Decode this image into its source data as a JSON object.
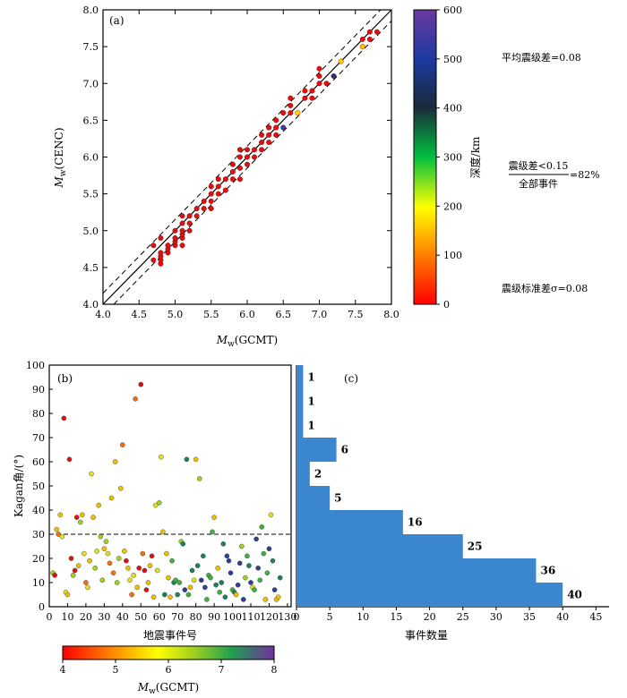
{
  "chart_data": [
    {
      "panel": "(a)",
      "type": "scatter",
      "xlabel_main": "M",
      "xlabel_sub": "w",
      "xlabel_paren": "(GCMT)",
      "ylabel_main": "M",
      "ylabel_sub": "w",
      "ylabel_paren": "(CENC)",
      "xlim": [
        4.0,
        8.0
      ],
      "ylim": [
        4.0,
        8.0
      ],
      "xticks": [
        "4.0",
        "4.5",
        "5.0",
        "5.5",
        "6.0",
        "6.5",
        "7.0",
        "7.5",
        "8.0"
      ],
      "yticks": [
        "4.0",
        "4.5",
        "5.0",
        "5.5",
        "6.0",
        "6.5",
        "7.0",
        "7.5",
        "8.0"
      ],
      "reference_lines": {
        "identity": true,
        "offset": 0.15
      },
      "points": [
        [
          4.7,
          4.6
        ],
        [
          4.8,
          4.55
        ],
        [
          4.8,
          4.6
        ],
        [
          4.8,
          4.65
        ],
        [
          4.8,
          4.7
        ],
        [
          4.8,
          4.9
        ],
        [
          4.7,
          4.8
        ],
        [
          4.9,
          4.7
        ],
        [
          4.9,
          4.75
        ],
        [
          4.9,
          4.8
        ],
        [
          5.0,
          4.8
        ],
        [
          5.0,
          4.85
        ],
        [
          5.0,
          4.9
        ],
        [
          5.0,
          5.0
        ],
        [
          5.1,
          4.8
        ],
        [
          5.1,
          4.9
        ],
        [
          5.1,
          4.95
        ],
        [
          5.1,
          5.0
        ],
        [
          5.1,
          5.1
        ],
        [
          5.1,
          5.2
        ],
        [
          5.2,
          5.0
        ],
        [
          5.2,
          5.1
        ],
        [
          5.2,
          5.2
        ],
        [
          5.3,
          5.2
        ],
        [
          5.3,
          5.3
        ],
        [
          5.4,
          5.3
        ],
        [
          5.4,
          5.4
        ],
        [
          5.5,
          5.3
        ],
        [
          5.5,
          5.4
        ],
        [
          5.5,
          5.5
        ],
        [
          5.5,
          5.6
        ],
        [
          5.6,
          5.5
        ],
        [
          5.6,
          5.6
        ],
        [
          5.6,
          5.7
        ],
        [
          5.7,
          5.55
        ],
        [
          5.7,
          5.7
        ],
        [
          5.8,
          5.7
        ],
        [
          5.8,
          5.8
        ],
        [
          5.8,
          5.9
        ],
        [
          5.9,
          5.7
        ],
        [
          5.9,
          5.85
        ],
        [
          5.9,
          6.0
        ],
        [
          5.9,
          6.1
        ],
        [
          6.0,
          5.9
        ],
        [
          6.0,
          6.0
        ],
        [
          6.0,
          6.1
        ],
        [
          6.1,
          6.0
        ],
        [
          6.1,
          6.1
        ],
        [
          6.2,
          6.1
        ],
        [
          6.2,
          6.2
        ],
        [
          6.2,
          6.3
        ],
        [
          6.3,
          6.2
        ],
        [
          6.3,
          6.3
        ],
        [
          6.3,
          6.4
        ],
        [
          6.4,
          6.3
        ],
        [
          6.4,
          6.4
        ],
        [
          6.4,
          6.5
        ],
        [
          6.5,
          6.4
        ],
        [
          6.5,
          6.6
        ],
        [
          6.6,
          6.6
        ],
        [
          6.6,
          6.7
        ],
        [
          6.6,
          6.8
        ],
        [
          6.7,
          6.6
        ],
        [
          6.8,
          6.8
        ],
        [
          6.8,
          6.9
        ],
        [
          6.9,
          6.8
        ],
        [
          6.9,
          6.9
        ],
        [
          7.0,
          7.0
        ],
        [
          7.0,
          7.1
        ],
        [
          7.0,
          7.2
        ],
        [
          7.1,
          7.0
        ],
        [
          7.2,
          7.1
        ],
        [
          7.3,
          7.3
        ],
        [
          7.6,
          7.5
        ],
        [
          7.6,
          7.6
        ],
        [
          7.7,
          7.6
        ],
        [
          7.7,
          7.7
        ],
        [
          7.8,
          7.7
        ]
      ],
      "colorbar": {
        "label": "深度/km",
        "range": [
          0,
          600
        ],
        "ticks": [
          "0",
          "100",
          "200",
          "300",
          "400",
          "500",
          "600"
        ]
      },
      "annotations": {
        "mean": "平均震级差=0.08",
        "ratio_num": "震级差<0.15",
        "ratio_den": "全部事件",
        "ratio_val": "=82%",
        "std": "震级标准差σ=0.08"
      }
    },
    {
      "panel": "(b)",
      "type": "scatter",
      "xlabel": "地震事件号",
      "ylabel": "Kagan角/(°)",
      "xlim": [
        0,
        132
      ],
      "ylim": [
        0,
        100
      ],
      "xticks": [
        "0",
        "10",
        "20",
        "30",
        "40",
        "50",
        "60",
        "70",
        "80",
        "90",
        "100",
        "110",
        "120",
        "130"
      ],
      "yticks": [
        "0",
        "10",
        "20",
        "30",
        "40",
        "50",
        "60",
        "70",
        "80",
        "90",
        "100"
      ],
      "threshold": 30,
      "colorbar": {
        "label_main": "M",
        "label_sub": "w",
        "label_paren": "(GCMT)",
        "range": [
          4,
          8
        ],
        "ticks": [
          "4",
          "5",
          "6",
          "7",
          "8"
        ]
      },
      "points": [
        [
          2,
          14
        ],
        [
          3,
          13
        ],
        [
          4,
          32
        ],
        [
          5,
          30
        ],
        [
          6,
          38
        ],
        [
          7,
          29
        ],
        [
          8,
          78
        ],
        [
          9,
          6
        ],
        [
          10,
          5
        ],
        [
          11,
          61
        ],
        [
          12,
          20
        ],
        [
          13,
          13
        ],
        [
          14,
          15
        ],
        [
          15,
          37
        ],
        [
          16,
          17
        ],
        [
          17,
          35
        ],
        [
          18,
          38
        ],
        [
          19,
          22
        ],
        [
          20,
          10
        ],
        [
          21,
          8
        ],
        [
          22,
          19
        ],
        [
          23,
          55
        ],
        [
          24,
          37
        ],
        [
          25,
          16
        ],
        [
          26,
          23
        ],
        [
          27,
          42
        ],
        [
          28,
          29
        ],
        [
          29,
          11
        ],
        [
          30,
          24
        ],
        [
          31,
          27
        ],
        [
          32,
          22
        ],
        [
          33,
          18
        ],
        [
          34,
          45
        ],
        [
          35,
          14
        ],
        [
          36,
          60
        ],
        [
          37,
          10
        ],
        [
          38,
          20
        ],
        [
          39,
          49
        ],
        [
          40,
          67
        ],
        [
          41,
          23
        ],
        [
          42,
          19
        ],
        [
          43,
          16
        ],
        [
          44,
          11
        ],
        [
          45,
          5
        ],
        [
          46,
          13
        ],
        [
          47,
          86
        ],
        [
          48,
          8
        ],
        [
          49,
          16
        ],
        [
          50,
          92
        ],
        [
          51,
          22
        ],
        [
          52,
          15
        ],
        [
          53,
          7
        ],
        [
          54,
          10
        ],
        [
          55,
          17
        ],
        [
          56,
          21
        ],
        [
          57,
          4
        ],
        [
          58,
          42
        ],
        [
          59,
          15
        ],
        [
          60,
          43
        ],
        [
          61,
          62
        ],
        [
          62,
          31
        ],
        [
          63,
          5
        ],
        [
          64,
          22
        ],
        [
          65,
          12
        ],
        [
          66,
          4
        ],
        [
          67,
          19
        ],
        [
          68,
          10
        ],
        [
          69,
          11
        ],
        [
          70,
          5
        ],
        [
          71,
          10
        ],
        [
          72,
          27
        ],
        [
          73,
          26
        ],
        [
          74,
          7
        ],
        [
          75,
          61
        ],
        [
          76,
          5
        ],
        [
          77,
          8
        ],
        [
          78,
          15
        ],
        [
          79,
          11
        ],
        [
          80,
          61
        ],
        [
          81,
          17
        ],
        [
          82,
          53
        ],
        [
          83,
          11
        ],
        [
          84,
          21
        ],
        [
          85,
          8
        ],
        [
          86,
          3
        ],
        [
          87,
          13
        ],
        [
          88,
          12
        ],
        [
          89,
          31
        ],
        [
          90,
          37
        ],
        [
          91,
          9
        ],
        [
          92,
          16
        ],
        [
          93,
          6
        ],
        [
          94,
          10
        ],
        [
          95,
          26
        ],
        [
          96,
          4
        ],
        [
          97,
          21
        ],
        [
          98,
          19
        ],
        [
          99,
          14
        ],
        [
          100,
          7
        ],
        [
          101,
          6
        ],
        [
          102,
          5
        ],
        [
          103,
          9
        ],
        [
          104,
          18
        ],
        [
          105,
          25
        ],
        [
          106,
          3
        ],
        [
          107,
          12
        ],
        [
          108,
          21
        ],
        [
          109,
          17
        ],
        [
          110,
          10
        ],
        [
          111,
          8
        ],
        [
          112,
          7
        ],
        [
          113,
          28
        ],
        [
          114,
          16
        ],
        [
          115,
          11
        ],
        [
          116,
          33
        ],
        [
          117,
          22
        ],
        [
          118,
          3
        ],
        [
          119,
          14
        ],
        [
          120,
          24
        ],
        [
          121,
          38
        ],
        [
          122,
          19
        ],
        [
          123,
          7
        ],
        [
          124,
          3
        ],
        [
          125,
          4
        ],
        [
          126,
          12
        ]
      ]
    },
    {
      "panel": "(c)",
      "type": "bar",
      "orientation": "horizontal",
      "xlabel": "事件数量",
      "xlim": [
        0,
        45
      ],
      "xticks": [
        "0",
        "5",
        "10",
        "15",
        "20",
        "25",
        "30",
        "35",
        "40",
        "45"
      ],
      "bins": [
        {
          "from": 0,
          "to": 10,
          "count": 40
        },
        {
          "from": 10,
          "to": 20,
          "count": 36
        },
        {
          "from": 20,
          "to": 30,
          "count": 25
        },
        {
          "from": 30,
          "to": 40,
          "count": 16
        },
        {
          "from": 40,
          "to": 50,
          "count": 5
        },
        {
          "from": 50,
          "to": 60,
          "count": 2
        },
        {
          "from": 60,
          "to": 70,
          "count": 6
        },
        {
          "from": 70,
          "to": 80,
          "count": 1
        },
        {
          "from": 80,
          "to": 90,
          "count": 1
        },
        {
          "from": 90,
          "to": 100,
          "count": 1
        }
      ],
      "bar_color": "#3a86cf"
    }
  ]
}
